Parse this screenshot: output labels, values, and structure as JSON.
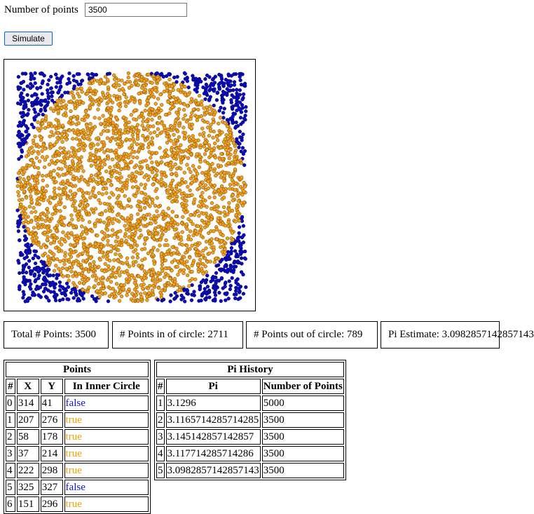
{
  "controls": {
    "num_points_label": "Number of points",
    "num_points_value": "3500",
    "simulate_label": "Simulate"
  },
  "plot": {
    "inside_color": "#f4a01c",
    "outside_color": "#0b0bbd"
  },
  "stats": {
    "total": "Total # Points: 3500",
    "in_circle": "# Points in of circle: 2711",
    "out_circle": "# Points out of circle: 789",
    "pi_estimate": "Pi Estimate: 3.0982857142857143"
  },
  "points_table": {
    "title": "Points",
    "headers": [
      "#",
      "X",
      "Y",
      "In Inner Circle"
    ],
    "rows": [
      [
        "0",
        "314",
        "41",
        "false"
      ],
      [
        "1",
        "207",
        "276",
        "true"
      ],
      [
        "2",
        "58",
        "178",
        "true"
      ],
      [
        "3",
        "37",
        "214",
        "true"
      ],
      [
        "4",
        "222",
        "298",
        "true"
      ],
      [
        "5",
        "325",
        "327",
        "false"
      ],
      [
        "6",
        "151",
        "296",
        "true"
      ]
    ]
  },
  "history_table": {
    "title": "Pi History",
    "headers": [
      "#",
      "Pi",
      "Number of Points"
    ],
    "rows": [
      [
        "1",
        "3.1296",
        "5000"
      ],
      [
        "2",
        "3.1165714285714285",
        "3500"
      ],
      [
        "3",
        "3.145142857142857",
        "3500"
      ],
      [
        "4",
        "3.117714285714286",
        "3500"
      ],
      [
        "5",
        "3.0982857142857143",
        "3500"
      ]
    ]
  }
}
